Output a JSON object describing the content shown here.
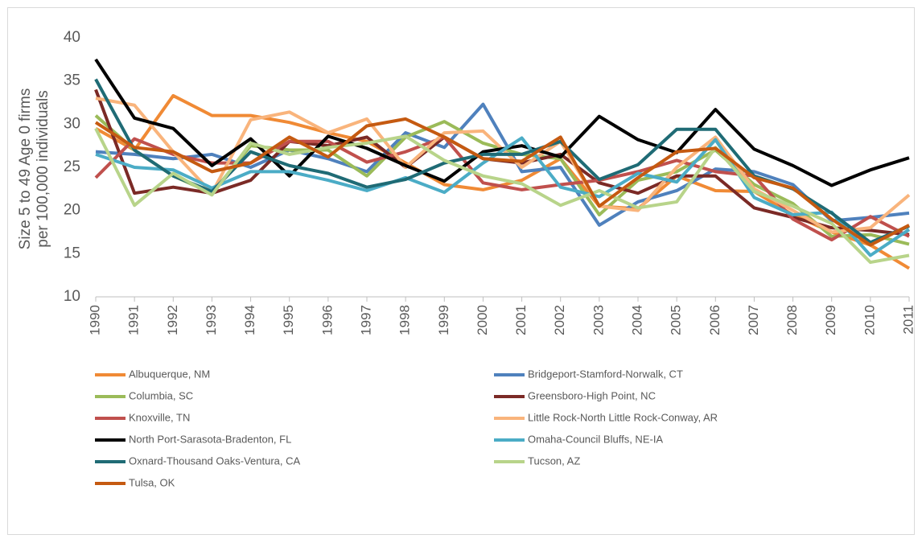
{
  "chart_data": {
    "type": "line",
    "ylabel": [
      "Size 5 to 49 Age 0 firms",
      "per 100,000 individuals"
    ],
    "categories": [
      "1990",
      "1991",
      "1992",
      "1993",
      "1994",
      "1995",
      "1996",
      "1997",
      "1998",
      "1999",
      "2000",
      "2001",
      "2002",
      "2003",
      "2004",
      "2005",
      "2006",
      "2007",
      "2008",
      "2009",
      "2010",
      "2011"
    ],
    "ylim": [
      10,
      40
    ],
    "yticks": [
      10,
      15,
      20,
      25,
      30,
      35,
      40
    ],
    "grid": false,
    "legend": "bottom",
    "series": [
      {
        "name": "Albuquerque, NM",
        "color": "#f08a35",
        "values": [
          29.5,
          27,
          33.3,
          31,
          31,
          30.2,
          29,
          28,
          25.5,
          23,
          22.4,
          23.5,
          26,
          20.5,
          20.2,
          24,
          22.3,
          22.2,
          19.5,
          17.5,
          16,
          13.3
        ]
      },
      {
        "name": "Bridgeport-Stamford-Norwalk, CT",
        "color": "#4f81bd",
        "values": [
          26.8,
          26.5,
          26,
          26.5,
          25,
          27,
          26,
          24.5,
          29,
          27.3,
          32.3,
          24.5,
          25,
          18.3,
          21,
          22.3,
          24.8,
          24.5,
          23,
          18.8,
          19.2,
          19.7
        ]
      },
      {
        "name": "Columbia, SC",
        "color": "#9bbb59",
        "values": [
          31,
          27,
          24,
          22,
          27.5,
          27,
          27,
          24,
          28.5,
          30.3,
          27.8,
          26.5,
          26,
          19.5,
          23.5,
          24.5,
          27,
          23,
          20.8,
          17,
          17.2,
          16.1
        ]
      },
      {
        "name": "Greensboro-High Point, NC",
        "color": "#7b2a26",
        "values": [
          34,
          22,
          22.7,
          22,
          23.5,
          28,
          27.5,
          28.5,
          25,
          28.5,
          26,
          25.5,
          26.5,
          23.2,
          22,
          24,
          24,
          20.3,
          19.2,
          18,
          17.7,
          17.2
        ]
      },
      {
        "name": "Knoxville, TN",
        "color": "#c0504d",
        "values": [
          23.8,
          28.3,
          26.5,
          25.5,
          25.5,
          28,
          28,
          25.6,
          26.8,
          28.5,
          23.2,
          22.4,
          23,
          23.5,
          24.5,
          25.8,
          24.5,
          24,
          19,
          16.6,
          19.3,
          17
        ]
      },
      {
        "name": "Little Rock-North Little Rock-Conway, AR",
        "color": "#f9b47c",
        "values": [
          33,
          32.2,
          26.8,
          22,
          30.5,
          31.4,
          29,
          30.6,
          25,
          29,
          29.2,
          25,
          28,
          20.5,
          20,
          25,
          28.5,
          22.5,
          20,
          17.5,
          18,
          21.8
        ]
      },
      {
        "name": "North Port-Sarasota-Bradenton, FL",
        "color": "#000000",
        "values": [
          37.5,
          30.7,
          29.5,
          25.2,
          28.3,
          24,
          28.6,
          27.2,
          25.2,
          23.4,
          26.8,
          27.5,
          26.2,
          30.9,
          28.2,
          26.7,
          31.7,
          27.1,
          25.2,
          22.9,
          24.7,
          26.1
        ]
      },
      {
        "name": "Omaha-Council Bluffs, NE-IA",
        "color": "#4bacc6",
        "values": [
          26.5,
          25,
          24.7,
          22.6,
          24.5,
          24.5,
          23.5,
          22.3,
          23.8,
          22.1,
          25.5,
          28.4,
          22.7,
          21.6,
          24.3,
          23.3,
          28.2,
          21.5,
          19.5,
          19.8,
          14.8,
          17.8
        ]
      },
      {
        "name": "Oxnard-Thousand Oaks-Ventura, CA",
        "color": "#1f6b75",
        "values": [
          35.2,
          27,
          24,
          22.2,
          26.8,
          25.2,
          24.3,
          22.7,
          23.6,
          25.5,
          26.5,
          26.5,
          28,
          23.6,
          25.3,
          29.4,
          29.4,
          24,
          22.5,
          19.7,
          16.3,
          18.2
        ]
      },
      {
        "name": "Tucson, AZ",
        "color": "#b8d48a",
        "values": [
          29.5,
          20.6,
          24.3,
          21.8,
          27.8,
          26.5,
          27.3,
          27.8,
          28.6,
          25.8,
          24,
          23.1,
          20.6,
          22.3,
          20.3,
          21,
          27.3,
          22.2,
          20.5,
          18.5,
          14,
          14.8
        ]
      },
      {
        "name": "Tulsa, OK",
        "color": "#c55a11",
        "values": [
          30.2,
          27.3,
          26.8,
          24.5,
          25.5,
          28.5,
          26.2,
          29.8,
          30.6,
          28.5,
          26,
          25.7,
          28.5,
          20.5,
          23.8,
          26.8,
          27.2,
          23.8,
          22.6,
          19,
          16,
          18.3
        ]
      }
    ]
  }
}
